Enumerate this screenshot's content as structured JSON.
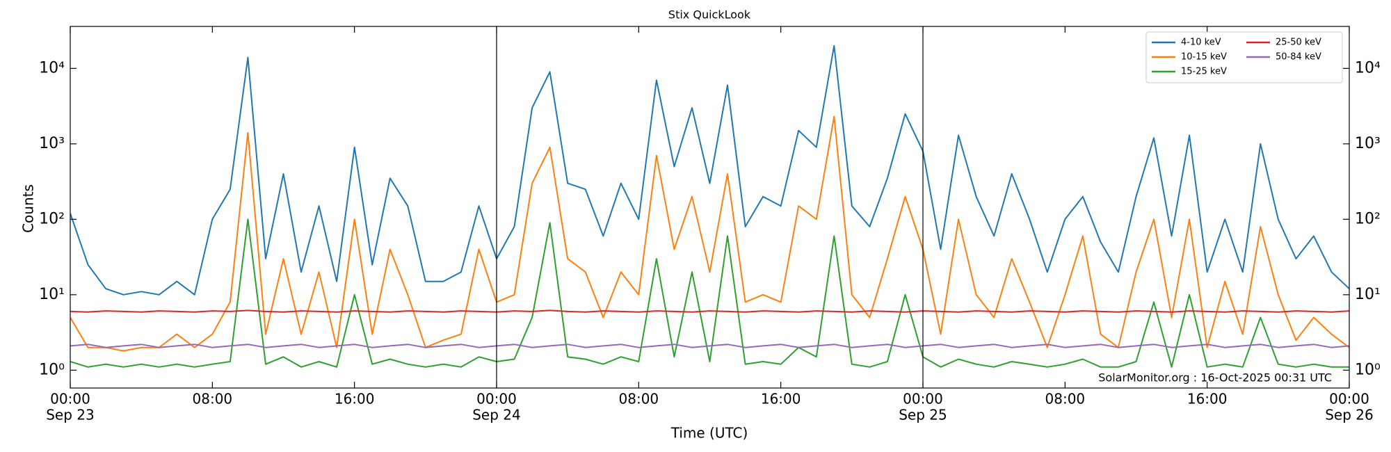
{
  "chart_data": {
    "type": "line",
    "title": "Stix QuickLook",
    "xlabel": "Time (UTC)",
    "ylabel": "Counts",
    "annotation": "SolarMonitor.org : 16-Oct-2025 00:31 UTC",
    "log_y": true,
    "legend": "upper right",
    "x": [
      0,
      1,
      2,
      3,
      4,
      5,
      6,
      7,
      8,
      9,
      10,
      11,
      12,
      13,
      14,
      15,
      16,
      17,
      18,
      19,
      20,
      21,
      22,
      23,
      24,
      25,
      26,
      27,
      28,
      29,
      30,
      31,
      32,
      33,
      34,
      35,
      36,
      37,
      38,
      39,
      40,
      41,
      42,
      43,
      44,
      45,
      46,
      47,
      48,
      49,
      50,
      51,
      52,
      53,
      54,
      55,
      56,
      57,
      58,
      59,
      60,
      61,
      62,
      63,
      64,
      65,
      66,
      67,
      68,
      69,
      70,
      71,
      72
    ],
    "xlim": [
      0,
      72
    ],
    "xticks": [
      {
        "value": 0,
        "label": "00:00",
        "date": "Sep 23"
      },
      {
        "value": 8,
        "label": "08:00"
      },
      {
        "value": 16,
        "label": "16:00"
      },
      {
        "value": 24,
        "label": "00:00",
        "date": "Sep 24"
      },
      {
        "value": 32,
        "label": "08:00"
      },
      {
        "value": 40,
        "label": "16:00"
      },
      {
        "value": 48,
        "label": "00:00",
        "date": "Sep 25"
      },
      {
        "value": 56,
        "label": "08:00"
      },
      {
        "value": 64,
        "label": "16:00"
      },
      {
        "value": 72,
        "label": "00:00",
        "date": "Sep 26"
      }
    ],
    "vlines": [
      24,
      48
    ],
    "ylim": [
      0.58,
      36000
    ],
    "yticks": [
      {
        "value": 1,
        "label": "10⁰"
      },
      {
        "value": 10,
        "label": "10¹"
      },
      {
        "value": 100,
        "label": "10²"
      },
      {
        "value": 1000,
        "label": "10³"
      },
      {
        "value": 10000,
        "label": "10⁴"
      }
    ],
    "series": [
      {
        "name": "4-10 keV",
        "color": "#1f77b4",
        "values": [
          120,
          25,
          12,
          10,
          11,
          10,
          15,
          10,
          100,
          250,
          14000,
          30,
          400,
          20,
          150,
          15,
          900,
          25,
          350,
          150,
          15,
          15,
          20,
          150,
          30,
          80,
          3000,
          9000,
          300,
          250,
          60,
          300,
          100,
          7000,
          500,
          3000,
          300,
          6000,
          80,
          200,
          150,
          1500,
          900,
          20000,
          150,
          80,
          350,
          2500,
          800,
          40,
          1300,
          200,
          60,
          400,
          100,
          20,
          100,
          200,
          50,
          20,
          200,
          1200,
          60,
          1300,
          20,
          100,
          20,
          1000,
          100,
          30,
          60,
          20,
          12
        ]
      },
      {
        "name": "10-15 keV",
        "color": "#ff7f0e",
        "values": [
          5,
          2,
          2,
          1.8,
          2,
          2,
          3,
          2,
          3,
          8,
          1400,
          3,
          30,
          3,
          20,
          2,
          100,
          3,
          40,
          10,
          2,
          2.5,
          3,
          40,
          8,
          10,
          300,
          900,
          30,
          20,
          5,
          20,
          10,
          700,
          40,
          200,
          20,
          400,
          8,
          10,
          8,
          150,
          100,
          2300,
          10,
          5,
          30,
          200,
          40,
          3,
          100,
          10,
          5,
          30,
          8,
          2,
          10,
          60,
          3,
          2,
          20,
          100,
          5,
          100,
          2,
          15,
          3,
          80,
          10,
          2.5,
          5,
          3,
          2
        ]
      },
      {
        "name": "15-25 keV",
        "color": "#2ca02c",
        "values": [
          1.3,
          1.1,
          1.2,
          1.1,
          1.2,
          1.1,
          1.2,
          1.1,
          1.2,
          1.3,
          100,
          1.2,
          1.5,
          1.1,
          1.3,
          1.1,
          10,
          1.2,
          1.4,
          1.2,
          1.1,
          1.2,
          1.1,
          1.5,
          1.3,
          1.4,
          5,
          90,
          1.5,
          1.4,
          1.2,
          1.5,
          1.3,
          30,
          1.5,
          20,
          1.3,
          60,
          1.2,
          1.3,
          1.2,
          2,
          1.5,
          60,
          1.2,
          1.1,
          1.3,
          10,
          1.5,
          1.1,
          1.4,
          1.2,
          1.1,
          1.3,
          1.2,
          1.1,
          1.2,
          1.4,
          1.1,
          1.1,
          1.3,
          8,
          1.1,
          10,
          1.1,
          1.2,
          1.1,
          5,
          1.2,
          1.1,
          1.2,
          1.1,
          1.1
        ]
      },
      {
        "name": "25-50 keV",
        "color": "#d62728",
        "values": [
          6,
          5.9,
          6.1,
          6,
          5.9,
          6.1,
          6,
          5.9,
          6.1,
          6,
          6.2,
          6,
          5.9,
          6.1,
          6,
          5.9,
          6.1,
          6,
          5.9,
          6.1,
          6,
          5.9,
          6.1,
          6,
          5.9,
          6.1,
          6,
          6.2,
          6,
          5.9,
          6.1,
          6,
          5.9,
          6.1,
          6,
          5.9,
          6.1,
          6,
          5.9,
          6.1,
          6,
          5.9,
          6.1,
          6,
          5.9,
          6.1,
          6,
          5.9,
          6.1,
          6,
          5.9,
          6.1,
          6,
          5.9,
          6.1,
          6,
          5.9,
          6.1,
          6,
          5.9,
          6.1,
          6,
          5.9,
          6.1,
          6,
          5.9,
          6.1,
          6,
          5.9,
          6.1,
          6,
          5.9,
          6.1
        ]
      },
      {
        "name": "50-84 keV",
        "color": "#9467bd",
        "values": [
          2.1,
          2.2,
          2,
          2.1,
          2.2,
          2,
          2.1,
          2.2,
          2,
          2.1,
          2.2,
          2,
          2.1,
          2.2,
          2,
          2.1,
          2.2,
          2,
          2.1,
          2.2,
          2,
          2.1,
          2.2,
          2,
          2.1,
          2.2,
          2,
          2.1,
          2.2,
          2,
          2.1,
          2.2,
          2,
          2.1,
          2.2,
          2,
          2.1,
          2.2,
          2,
          2.1,
          2.2,
          2,
          2.1,
          2.2,
          2,
          2.1,
          2.2,
          2,
          2.1,
          2.2,
          2,
          2.1,
          2.2,
          2,
          2.1,
          2.2,
          2,
          2.1,
          2.2,
          2,
          2.1,
          2.2,
          2,
          2.1,
          2.2,
          2,
          2.1,
          2.2,
          2,
          2.1,
          2.2,
          2,
          2.1
        ]
      }
    ]
  }
}
